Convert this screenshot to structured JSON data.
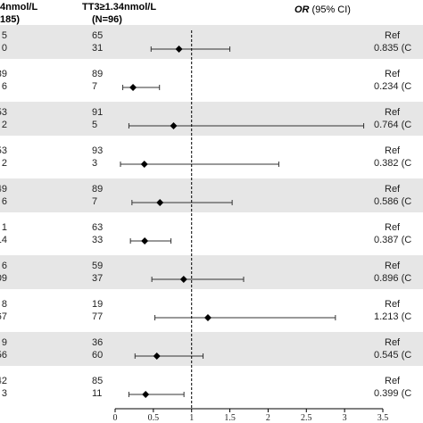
{
  "header": {
    "col1_line1": "4nmol/L",
    "col1_line2": "185)",
    "col2_line1": "TT3≥1.34nmol/L",
    "col2_line2": "(N=96)",
    "or_italic": "OR",
    "or_rest": " (95% CI)"
  },
  "chart_data": {
    "type": "forest",
    "xlim": [
      0,
      3.5
    ],
    "xticks": [
      "0",
      "0.5",
      "1",
      "1.5",
      "2",
      "2.5",
      "3",
      "3.5"
    ],
    "xtick_values": [
      0,
      0.5,
      1,
      1.5,
      2,
      2.5,
      3,
      3.5
    ],
    "reference_line": 1,
    "rows": [
      {
        "col1_top": "5",
        "col1_bot": "0",
        "col2_top": "65",
        "col2_bot": "31",
        "ref": "Ref",
        "or_text": "0.835 (C",
        "or": 0.835,
        "lo": 0.47,
        "hi": 1.5,
        "shaded": true
      },
      {
        "col1_top": "39",
        "col1_bot": "6",
        "col2_top": "89",
        "col2_bot": "7",
        "ref": "Ref",
        "or_text": "0.234 (C",
        "or": 0.234,
        "lo": 0.1,
        "hi": 0.58,
        "shaded": false
      },
      {
        "col1_top": "53",
        "col1_bot": "2",
        "col2_top": "91",
        "col2_bot": "5",
        "ref": "Ref",
        "or_text": "0.764 (C",
        "or": 0.764,
        "lo": 0.18,
        "hi": 3.25,
        "shaded": true
      },
      {
        "col1_top": "53",
        "col1_bot": "2",
        "col2_top": "93",
        "col2_bot": "3",
        "ref": "Ref",
        "or_text": "0.382 (C",
        "or": 0.382,
        "lo": 0.07,
        "hi": 2.14,
        "shaded": false
      },
      {
        "col1_top": "49",
        "col1_bot": "6",
        "col2_top": "89",
        "col2_bot": "7",
        "ref": "Ref",
        "or_text": "0.586 (C",
        "or": 0.586,
        "lo": 0.22,
        "hi": 1.53,
        "shaded": true
      },
      {
        "col1_top": "1",
        "col1_bot": "14",
        "col2_top": "63",
        "col2_bot": "33",
        "ref": "Ref",
        "or_text": "0.387 (C",
        "or": 0.387,
        "lo": 0.2,
        "hi": 0.73,
        "shaded": false
      },
      {
        "col1_top": "6",
        "col1_bot": "09",
        "col2_top": "59",
        "col2_bot": "37",
        "ref": "Ref",
        "or_text": "0.896 (C",
        "or": 0.896,
        "lo": 0.48,
        "hi": 1.68,
        "shaded": true
      },
      {
        "col1_top": "8",
        "col1_bot": "67",
        "col2_top": "19",
        "col2_bot": "77",
        "ref": "Ref",
        "or_text": "1.213 (C",
        "or": 1.213,
        "lo": 0.52,
        "hi": 2.88,
        "shaded": false
      },
      {
        "col1_top": "9",
        "col1_bot": "56",
        "col2_top": "36",
        "col2_bot": "60",
        "ref": "Ref",
        "or_text": "0.545 (C",
        "or": 0.545,
        "lo": 0.26,
        "hi": 1.15,
        "shaded": true
      },
      {
        "col1_top": "42",
        "col1_bot": "3",
        "col2_top": "85",
        "col2_bot": "11",
        "ref": "Ref",
        "or_text": "0.399 (C",
        "or": 0.399,
        "lo": 0.18,
        "hi": 0.9,
        "shaded": false
      }
    ]
  }
}
